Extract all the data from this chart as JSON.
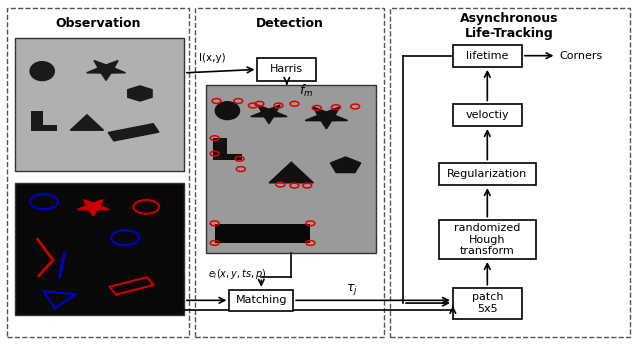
{
  "section_titles": {
    "observation": "Observation",
    "detection": "Detection",
    "tracking": "Asynchronous\nLife-Tracking"
  },
  "bg_color": "#ffffff",
  "box_color": "#ffffff",
  "box_edge": "#000000",
  "text_color": "#000000",
  "arrow_color": "#000000",
  "dashed_border_color": "#555555",
  "img_gray": "#aaaaaa",
  "img_black": "#080808",
  "img_dark_shape": "#1a1a1a",
  "red_marker": "#dd0000",
  "blue_event": "#0000cc",
  "red_event": "#cc0000"
}
